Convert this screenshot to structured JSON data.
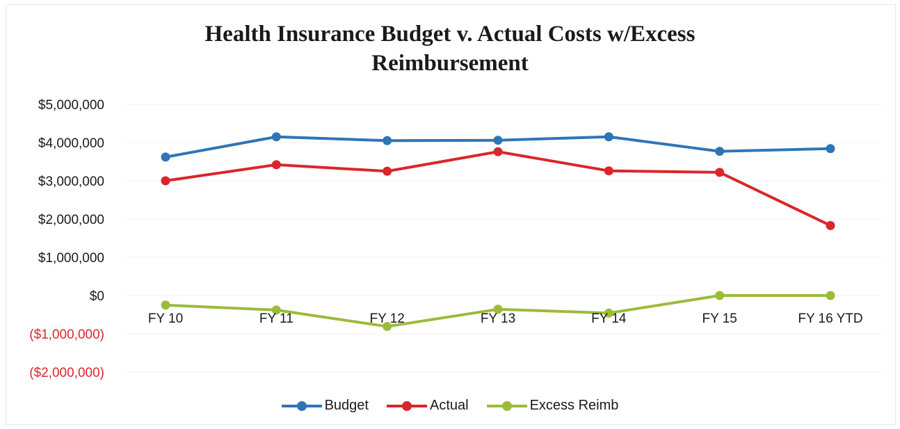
{
  "chart_data": {
    "type": "line",
    "title_lines": [
      "Health Insurance Budget v. Actual Costs w/Excess",
      "Reimbursement"
    ],
    "categories": [
      "FY 10",
      "FY 11",
      "FY 12",
      "FY 13",
      "FY 14",
      "FY 15",
      "FY 16 YTD"
    ],
    "y_ticks": [
      {
        "value": 5000000,
        "label": "$5,000,000",
        "negative": false
      },
      {
        "value": 4000000,
        "label": "$4,000,000",
        "negative": false
      },
      {
        "value": 3000000,
        "label": "$3,000,000",
        "negative": false
      },
      {
        "value": 2000000,
        "label": "$2,000,000",
        "negative": false
      },
      {
        "value": 1000000,
        "label": "$1,000,000",
        "negative": false
      },
      {
        "value": 0,
        "label": "$0",
        "negative": false
      },
      {
        "value": -1000000,
        "label": "($1,000,000)",
        "negative": true
      },
      {
        "value": -2000000,
        "label": "($2,000,000)",
        "negative": true
      }
    ],
    "ylim": [
      -2000000,
      5000000
    ],
    "grid": true,
    "legend_position": "bottom",
    "negative_label_color": "#d9262c",
    "series": [
      {
        "name": "Budget",
        "color": "#2e75b6",
        "values": [
          3620000,
          4150000,
          4050000,
          4060000,
          4150000,
          3770000,
          3840000
        ]
      },
      {
        "name": "Actual",
        "color": "#d9262c",
        "values": [
          3000000,
          3420000,
          3250000,
          3760000,
          3260000,
          3220000,
          1830000
        ]
      },
      {
        "name": "Excess Reimb",
        "color": "#9bbb3b",
        "values": [
          -250000,
          -380000,
          -810000,
          -360000,
          -460000,
          0,
          0
        ]
      }
    ]
  }
}
